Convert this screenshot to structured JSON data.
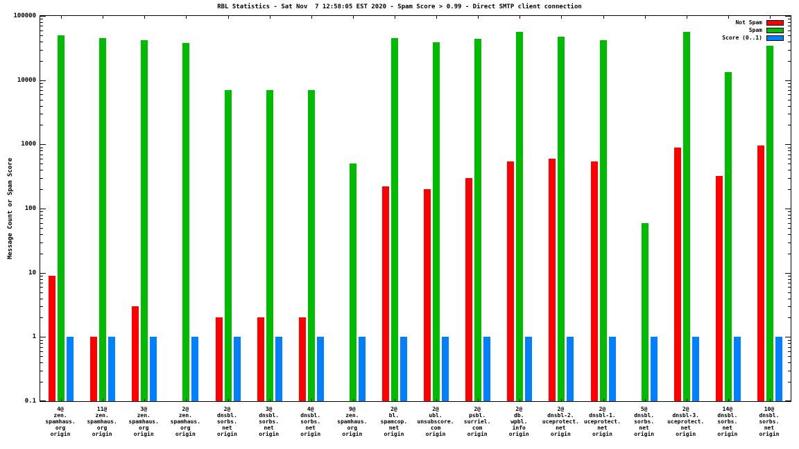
{
  "chart_data": {
    "type": "bar",
    "title": "RBL Statistics - Sat Nov  7 12:58:05 EST 2020 - Spam Score > 0.99 - Direct SMTP client connection",
    "ylabel": "Message Count or Spam Score",
    "yscale": "log",
    "ylim": [
      0.1,
      100000
    ],
    "ytick_labels": [
      "100000",
      "10000",
      "1000",
      "100",
      "10",
      "1",
      "0.1"
    ],
    "grid": false,
    "legend_position": "top-right-inside",
    "categories": [
      [
        "4@",
        "zen.",
        "spamhaus.",
        "org",
        "origin"
      ],
      [
        "11@",
        "zen.",
        "spamhaus.",
        "org",
        "origin"
      ],
      [
        "3@",
        "zen.",
        "spamhaus.",
        "org",
        "origin"
      ],
      [
        "2@",
        "zen.",
        "spamhaus.",
        "org",
        "origin"
      ],
      [
        "2@",
        "dnsbl.",
        "sorbs.",
        "net",
        "origin"
      ],
      [
        "3@",
        "dnsbl.",
        "sorbs.",
        "net",
        "origin"
      ],
      [
        "4@",
        "dnsbl.",
        "sorbs.",
        "net",
        "origin"
      ],
      [
        "9@",
        "zen.",
        "spamhaus.",
        "org",
        "origin"
      ],
      [
        "2@",
        "bl.",
        "spamcop.",
        "net",
        "origin"
      ],
      [
        "2@",
        "ubl.",
        "unsubscore.",
        "com",
        "origin"
      ],
      [
        "2@",
        "psbl.",
        "surriel.",
        "com",
        "origin"
      ],
      [
        "2@",
        "db.",
        "wpbl.",
        "info",
        "origin"
      ],
      [
        "2@",
        "dnsbl-2.",
        "uceprotect.",
        "net",
        "origin"
      ],
      [
        "2@",
        "dnsbl-1.",
        "uceprotect.",
        "net",
        "origin"
      ],
      [
        "5@",
        "dnsbl.",
        "sorbs.",
        "net",
        "origin"
      ],
      [
        "2@",
        "dnsbl-3.",
        "uceprotect.",
        "net",
        "origin"
      ],
      [
        "14@",
        "dnsbl.",
        "sorbs.",
        "net",
        "origin"
      ],
      [
        "10@",
        "dnsbl.",
        "sorbs.",
        "net",
        "origin"
      ]
    ],
    "series": [
      {
        "name": "Not Spam",
        "color": "#ff0000",
        "values": [
          9,
          1,
          3,
          null,
          2,
          2,
          2,
          null,
          220,
          200,
          300,
          540,
          600,
          540,
          null,
          900,
          320,
          950
        ]
      },
      {
        "name": "Spam",
        "color": "#00bb00",
        "values": [
          50000,
          45000,
          42000,
          38000,
          7000,
          7000,
          7000,
          500,
          45000,
          39000,
          44000,
          57000,
          48000,
          42000,
          60,
          56000,
          13500,
          34000
        ]
      },
      {
        "name": "Score (0..1)",
        "color": "#0080ff",
        "values": [
          1,
          1,
          1,
          1,
          1,
          1,
          1,
          1,
          1,
          1,
          1,
          1,
          1,
          1,
          1,
          1,
          1,
          1
        ]
      }
    ]
  }
}
